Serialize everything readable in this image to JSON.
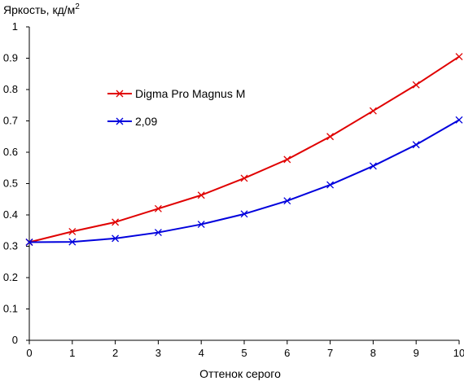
{
  "chart_data": {
    "type": "line",
    "title": "",
    "ylabel": "Яркость, кд/м",
    "ylabel_superscript": "2",
    "xlabel": "Оттенок серого",
    "xlim": [
      0,
      10
    ],
    "ylim": [
      0,
      1
    ],
    "x_ticks": [
      "0",
      "1",
      "2",
      "3",
      "4",
      "5",
      "6",
      "7",
      "8",
      "9",
      "10"
    ],
    "y_ticks": [
      "0",
      "0.1",
      "0.2",
      "0.3",
      "0.4",
      "0.5",
      "0.6",
      "0.7",
      "0.8",
      "0.9",
      "1"
    ],
    "grid": false,
    "legend_position": "upper-left-inside",
    "x": [
      0,
      1,
      2,
      3,
      4,
      5,
      6,
      7,
      8,
      9,
      10
    ],
    "series": [
      {
        "name": "Digma Pro Magnus M",
        "color": "#e00000",
        "marker": "x",
        "values": [
          0.313,
          0.347,
          0.377,
          0.42,
          0.463,
          0.517,
          0.577,
          0.65,
          0.732,
          0.815,
          0.905
        ]
      },
      {
        "name": "2,09",
        "color": "#0000dd",
        "marker": "x",
        "values": [
          0.313,
          0.314,
          0.325,
          0.344,
          0.37,
          0.403,
          0.445,
          0.496,
          0.556,
          0.624,
          0.703
        ]
      }
    ]
  }
}
